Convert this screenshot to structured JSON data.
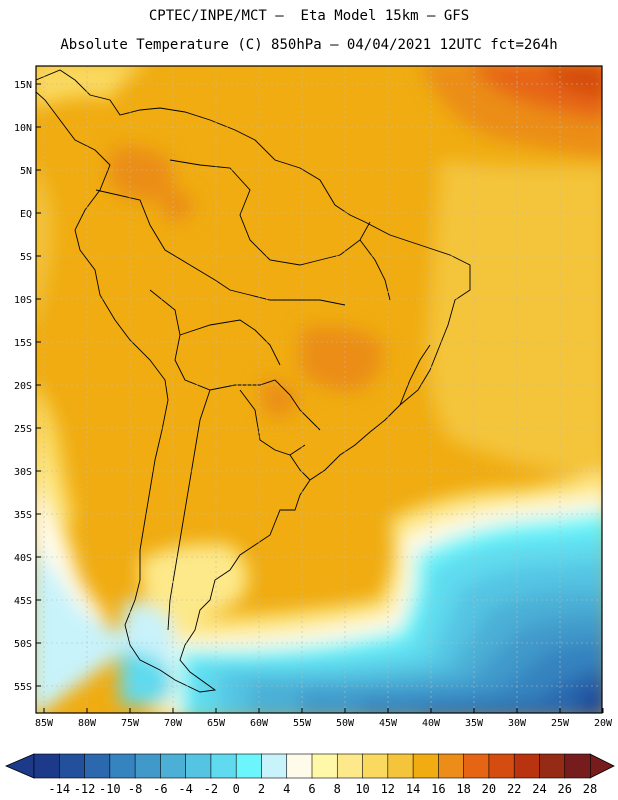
{
  "header": {
    "line1": "CPTEC/INPE/MCT –  Eta Model 15km – GFS",
    "line2": "Absolute Temperature (C) 850hPa – 04/04/2021 12UTC fct=264h"
  },
  "lat_labels": [
    "15N",
    "10N",
    "5N",
    "EQ",
    "5S",
    "10S",
    "15S",
    "20S",
    "25S",
    "30S",
    "35S",
    "40S",
    "45S",
    "50S",
    "55S"
  ],
  "lon_labels": [
    "85W",
    "80W",
    "75W",
    "70W",
    "65W",
    "60W",
    "55W",
    "50W",
    "45W",
    "40W",
    "35W",
    "30W",
    "25W",
    "20W"
  ],
  "colorbar": {
    "labels": [
      "-14",
      "-12",
      "-10",
      "-8",
      "-6",
      "-4",
      "-2",
      "0",
      "2",
      "4",
      "6",
      "8",
      "10",
      "12",
      "14",
      "16",
      "18",
      "20",
      "22",
      "24",
      "26",
      "28"
    ],
    "colors": [
      "#1d3a8a",
      "#23509c",
      "#2b68ad",
      "#3583bf",
      "#4199ca",
      "#4bafd6",
      "#55c4e3",
      "#5fdaee",
      "#6cf5fa",
      "#c8f3fb",
      "#fffbea",
      "#fff8a9",
      "#fde98a",
      "#fad95f",
      "#f4c43a",
      "#f0ac11",
      "#eb8d18",
      "#e66514",
      "#d54c11",
      "#b93310",
      "#952b14",
      "#761c1c"
    ]
  }
}
